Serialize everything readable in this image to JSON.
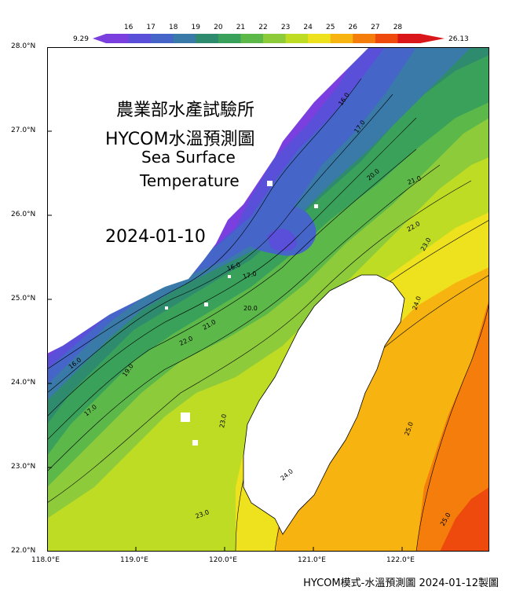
{
  "title": {
    "agency": "農業部水產試驗所",
    "product": "HYCOM水溫預測圖",
    "line1": "Sea Surface",
    "line2": "Temperature",
    "date": "2024-01-10"
  },
  "footer": "HYCOM模式-水溫預測圖 2024-01-12製圖",
  "colorbar": {
    "min_label": "9.29",
    "max_label": "26.13",
    "ticks": [
      "16",
      "17",
      "18",
      "19",
      "20",
      "21",
      "22",
      "23",
      "24",
      "25",
      "26",
      "27",
      "28"
    ],
    "colors": [
      "#7b3fe0",
      "#5a4fd8",
      "#4565c8",
      "#3a7aa8",
      "#2e8b6e",
      "#3aa15a",
      "#5db84a",
      "#8ecb3a",
      "#bfdc25",
      "#eee11d",
      "#f7b30f",
      "#f47d0c",
      "#ef4a0e",
      "#d9161a"
    ]
  },
  "axes": {
    "y_labels": [
      "28.0°N",
      "27.0°N",
      "26.0°N",
      "25.0°N",
      "24.0°N",
      "23.0°N",
      "22.0°N"
    ],
    "x_labels": [
      "118.0°E",
      "119.0°E",
      "120.0°E",
      "121.0°E",
      "122.0°E"
    ]
  },
  "contour_labels": [
    "16.0",
    "17.0",
    "18.0",
    "19.0",
    "20.0",
    "21.0",
    "22.0",
    "23.0",
    "24.0",
    "25.0"
  ]
}
